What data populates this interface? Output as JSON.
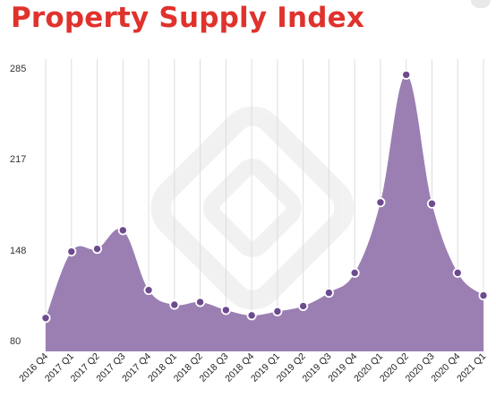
{
  "page": {
    "title": "Property Supply Index"
  },
  "colors": {
    "title": "#e0322c",
    "area_fill": "#9b7fb2",
    "point_fill": "#6e4a8f",
    "point_stroke": "#ffffff",
    "grid": "#dcdcdc"
  },
  "chart_data": {
    "type": "area",
    "title": "Property Supply Index",
    "xlabel": "",
    "ylabel": "",
    "categories": [
      "2016 Q4",
      "2017 Q1",
      "2017 Q2",
      "2017 Q3",
      "2017 Q4",
      "2018 Q1",
      "2018 Q2",
      "2018 Q3",
      "2018 Q4",
      "2019 Q1",
      "2019 Q2",
      "2019 Q3",
      "2019 Q4",
      "2020 Q1",
      "2020 Q2",
      "2020 Q3",
      "2020 Q4",
      "2021 Q1"
    ],
    "values": [
      97,
      147,
      149,
      163,
      118,
      107,
      109,
      103,
      99,
      102,
      106,
      116,
      131,
      184,
      280,
      183,
      131,
      114
    ],
    "ylim": [
      80,
      285
    ],
    "y_ticks": [
      "285",
      "217",
      "148",
      "80"
    ],
    "y_tick_values": [
      285,
      217,
      148,
      80
    ],
    "grid": "vertical",
    "legend": "none"
  }
}
